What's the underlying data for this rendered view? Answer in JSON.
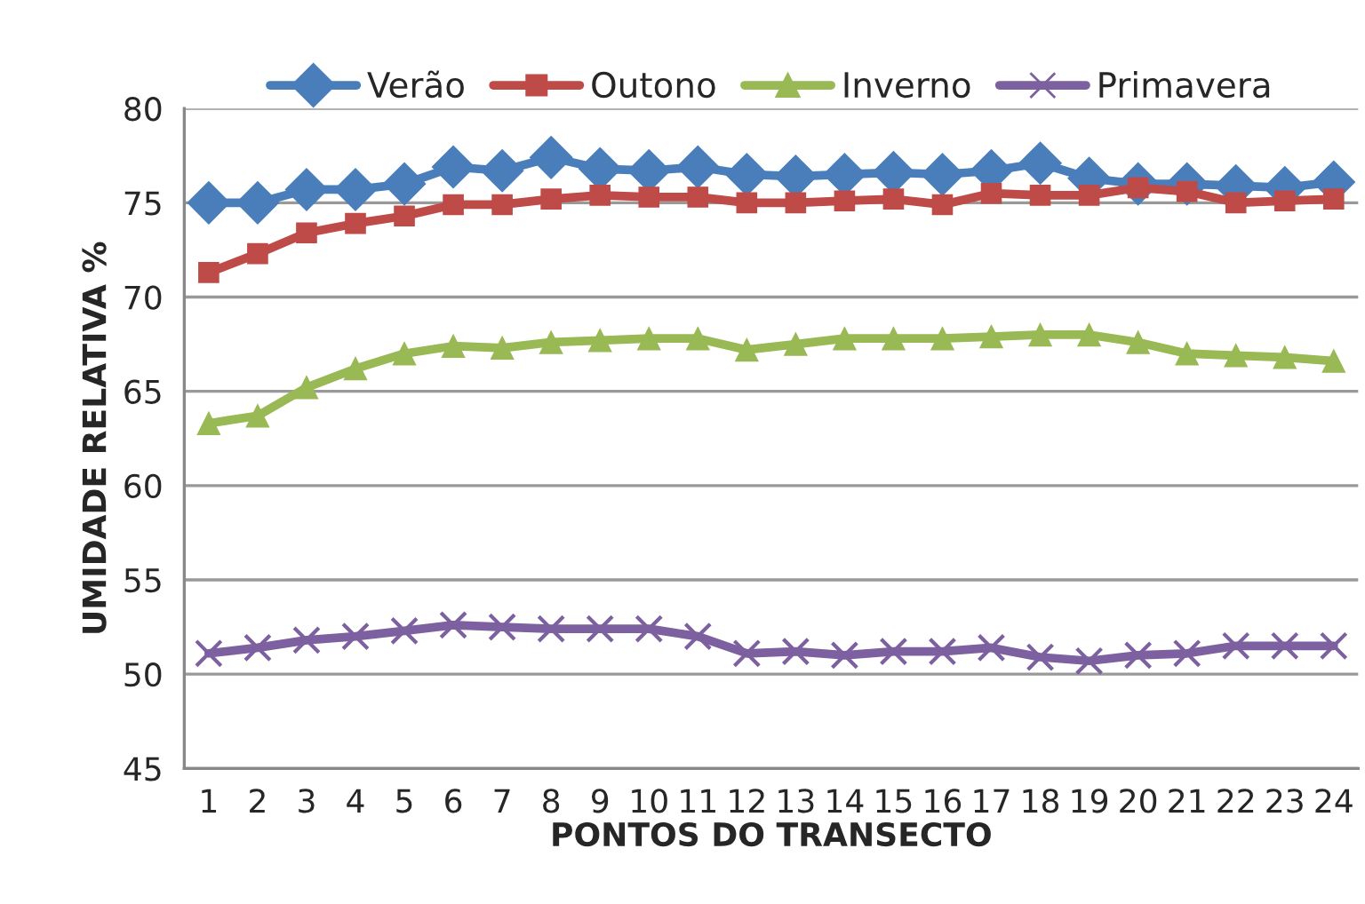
{
  "chart_data": {
    "type": "line",
    "xlabel": "PONTOS DO TRANSECTO",
    "ylabel": "UMIDADE RELATIVA %",
    "categories": [
      "1",
      "2",
      "3",
      "4",
      "5",
      "6",
      "7",
      "8",
      "9",
      "10",
      "11",
      "12",
      "13",
      "14",
      "15",
      "16",
      "17",
      "18",
      "19",
      "20",
      "21",
      "22",
      "23",
      "24"
    ],
    "series": [
      {
        "name": "Verão",
        "color": "#4a7ebb",
        "marker": "diamond",
        "values": [
          75.0,
          75.0,
          75.7,
          75.7,
          76.0,
          76.9,
          76.7,
          77.4,
          76.8,
          76.7,
          76.9,
          76.5,
          76.4,
          76.5,
          76.6,
          76.5,
          76.7,
          77.1,
          76.3,
          76.0,
          76.0,
          75.9,
          75.8,
          76.1
        ]
      },
      {
        "name": "Outono",
        "color": "#be4b48",
        "marker": "square",
        "values": [
          71.3,
          72.3,
          73.4,
          73.9,
          74.3,
          74.9,
          74.9,
          75.2,
          75.4,
          75.3,
          75.3,
          75.0,
          75.0,
          75.1,
          75.2,
          74.9,
          75.5,
          75.4,
          75.4,
          75.8,
          75.6,
          75.0,
          75.1,
          75.2
        ]
      },
      {
        "name": "Inverno",
        "color": "#98b954",
        "marker": "triangle",
        "values": [
          63.3,
          63.7,
          65.2,
          66.2,
          67.0,
          67.4,
          67.3,
          67.6,
          67.7,
          67.8,
          67.8,
          67.2,
          67.5,
          67.8,
          67.8,
          67.8,
          67.9,
          68.0,
          68.0,
          67.6,
          67.0,
          66.9,
          66.8,
          66.6
        ]
      },
      {
        "name": "Primavera",
        "color": "#7d60a0",
        "marker": "cross",
        "values": [
          51.1,
          51.4,
          51.8,
          52.0,
          52.3,
          52.6,
          52.5,
          52.4,
          52.4,
          52.4,
          52.0,
          51.1,
          51.2,
          51.0,
          51.2,
          51.2,
          51.4,
          50.9,
          50.7,
          51.0,
          51.1,
          51.5,
          51.5,
          51.5
        ]
      }
    ],
    "ylim": [
      45,
      80
    ],
    "yticks": [
      45,
      50,
      55,
      60,
      65,
      70,
      75,
      80
    ],
    "grid": "y",
    "legend": "top",
    "line_style": "solid"
  }
}
